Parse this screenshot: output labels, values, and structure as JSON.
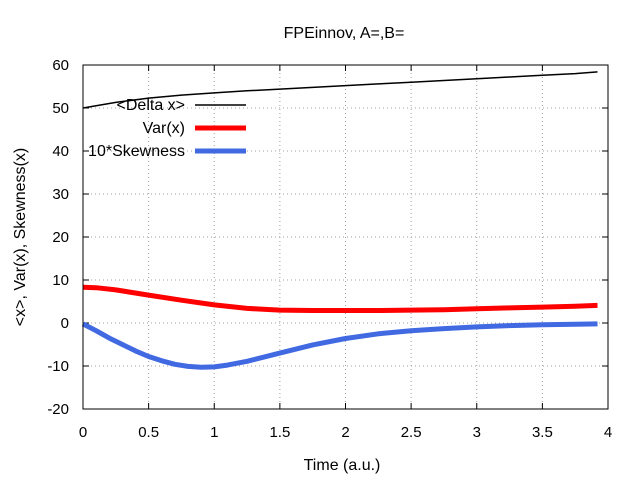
{
  "chart_data": {
    "type": "line",
    "title": "FPEinnov, A=,B=",
    "xlabel": "Time (a.u.)",
    "ylabel": "<x>, Var(x), Skewness(x)",
    "xlim": [
      0,
      4
    ],
    "ylim": [
      -20,
      60
    ],
    "xticks": [
      0,
      0.5,
      1,
      1.5,
      2,
      2.5,
      3,
      3.5,
      4
    ],
    "yticks": [
      -20,
      -10,
      0,
      10,
      20,
      30,
      40,
      50,
      60
    ],
    "grid": true,
    "legend_position": "top-left",
    "series": [
      {
        "name": "<Delta x>",
        "color": "#000000",
        "x": [
          0,
          0.25,
          0.5,
          0.75,
          1,
          1.25,
          1.5,
          1.75,
          2,
          2.25,
          2.5,
          2.75,
          3,
          3.25,
          3.5,
          3.75,
          3.92
        ],
        "y": [
          50.0,
          51.3,
          52.3,
          53.0,
          53.5,
          54.0,
          54.4,
          54.8,
          55.2,
          55.6,
          56.0,
          56.4,
          56.8,
          57.2,
          57.6,
          58.0,
          58.4
        ]
      },
      {
        "name": "Var(x)",
        "color": "#ff0000",
        "x": [
          0,
          0.1,
          0.25,
          0.5,
          0.75,
          1,
          1.25,
          1.5,
          1.75,
          2,
          2.25,
          2.5,
          2.75,
          3,
          3.25,
          3.5,
          3.75,
          3.92
        ],
        "y": [
          8.3,
          8.2,
          7.7,
          6.5,
          5.3,
          4.2,
          3.4,
          3.0,
          2.9,
          2.9,
          2.9,
          3.0,
          3.1,
          3.3,
          3.5,
          3.7,
          3.9,
          4.1
        ]
      },
      {
        "name": "10*Skewness",
        "color": "#4169e1",
        "x": [
          0,
          0.1,
          0.2,
          0.3,
          0.4,
          0.5,
          0.6,
          0.7,
          0.8,
          0.9,
          1.0,
          1.1,
          1.25,
          1.5,
          1.75,
          2,
          2.25,
          2.5,
          2.75,
          3,
          3.25,
          3.5,
          3.75,
          3.92
        ],
        "y": [
          -0.2,
          -1.8,
          -3.5,
          -5.0,
          -6.5,
          -7.8,
          -8.8,
          -9.6,
          -10.1,
          -10.3,
          -10.2,
          -9.8,
          -8.9,
          -7.0,
          -5.1,
          -3.6,
          -2.5,
          -1.8,
          -1.3,
          -0.9,
          -0.6,
          -0.4,
          -0.3,
          -0.2
        ]
      }
    ]
  }
}
